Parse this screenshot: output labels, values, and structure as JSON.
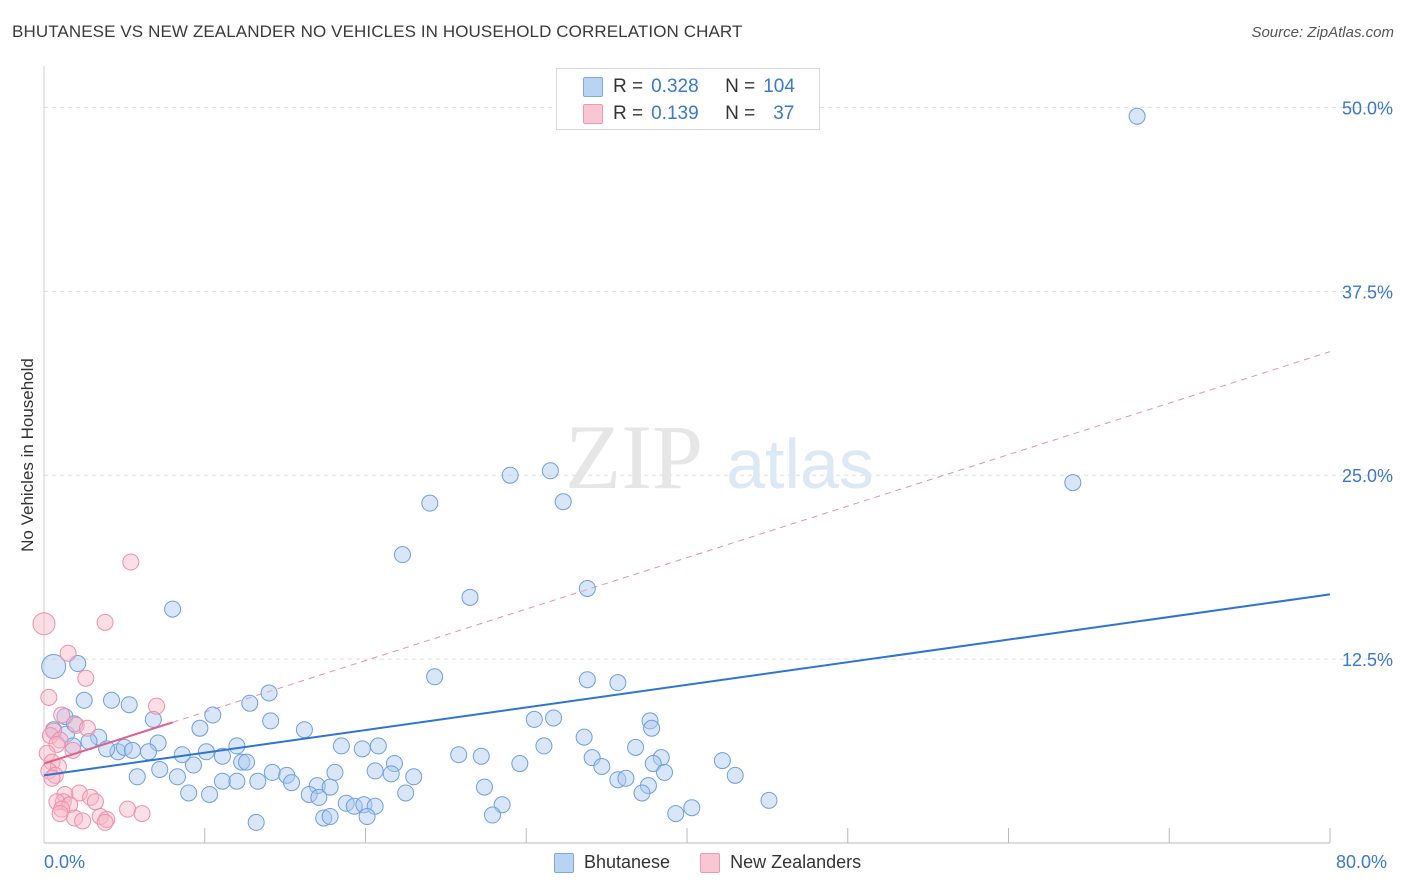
{
  "header": {
    "title": "BHUTANESE VS NEW ZEALANDER NO VEHICLES IN HOUSEHOLD CORRELATION CHART",
    "source": "Source: ZipAtlas.com"
  },
  "watermark": {
    "zip": "ZIP",
    "atlas": "atlas"
  },
  "legend": {
    "items": [
      {
        "r_label": "R =",
        "r_value": "0.328",
        "n_label": "N =",
        "n_value": "104",
        "color": "#a8c8f0"
      },
      {
        "r_label": "R =",
        "r_value": "0.139",
        "n_label": "N =",
        "n_value": "37",
        "color": "#f7b6c8"
      }
    ]
  },
  "bottom_legend": {
    "bhutanese": "Bhutanese",
    "new_zealanders": "New Zealanders"
  },
  "colors": {
    "blue_fill": "rgba(168,200,240,0.45)",
    "blue_stroke": "#6f9fdc",
    "blue_line": "#2f74d0",
    "pink_fill": "rgba(247,182,200,0.45)",
    "pink_stroke": "#ee8fab",
    "pink_line": "#e0608a",
    "grid": "#dddddd",
    "tick_label": "#3a78c9"
  },
  "chart_data": {
    "type": "scatter",
    "title": "BHUTANESE VS NEW ZEALANDER NO VEHICLES IN HOUSEHOLD CORRELATION CHART",
    "xlabel": "",
    "ylabel": "No Vehicles in Household",
    "xlim": [
      0,
      80
    ],
    "ylim": [
      0,
      52
    ],
    "x_tick_labels": [
      "0.0%",
      "80.0%"
    ],
    "y_ticks": [
      {
        "value": 12.5,
        "label": "12.5%"
      },
      {
        "value": 25.0,
        "label": "25.0%"
      },
      {
        "value": 37.5,
        "label": "37.5%"
      },
      {
        "value": 50.0,
        "label": "50.0%"
      }
    ],
    "series": [
      {
        "name": "Bhutanese",
        "R": 0.328,
        "N": 104,
        "trend": {
          "x": [
            0,
            80
          ],
          "y": [
            4.6,
            16.9
          ]
        },
        "points": [
          [
            68,
            49.4
          ],
          [
            64,
            24.5
          ],
          [
            31.5,
            25.3
          ],
          [
            29,
            25
          ],
          [
            32.3,
            23.2
          ],
          [
            24,
            23.1
          ],
          [
            22.3,
            19.6
          ],
          [
            33.8,
            17.3
          ],
          [
            26.5,
            16.7
          ],
          [
            8,
            15.9
          ],
          [
            0.6,
            12
          ],
          [
            2.1,
            12.2
          ],
          [
            24.3,
            11.3
          ],
          [
            33.8,
            11.1
          ],
          [
            35.7,
            10.9
          ],
          [
            14,
            10.2
          ],
          [
            12.8,
            9.5
          ],
          [
            2.5,
            9.7
          ],
          [
            4.2,
            9.7
          ],
          [
            5.3,
            9.4
          ],
          [
            10.5,
            8.7
          ],
          [
            1.3,
            8.6
          ],
          [
            0.6,
            7.7
          ],
          [
            1.4,
            7.4
          ],
          [
            6.8,
            8.4
          ],
          [
            14.1,
            8.3
          ],
          [
            30.5,
            8.4
          ],
          [
            31.7,
            8.5
          ],
          [
            37.7,
            8.3
          ],
          [
            37.8,
            7.8
          ],
          [
            9.7,
            7.8
          ],
          [
            3.4,
            7.2
          ],
          [
            1.8,
            6.6
          ],
          [
            7.1,
            6.8
          ],
          [
            4.6,
            6.2
          ],
          [
            5,
            6.5
          ],
          [
            6.5,
            6.2
          ],
          [
            12,
            6.6
          ],
          [
            18.5,
            6.6
          ],
          [
            19.8,
            6.4
          ],
          [
            20.8,
            6.6
          ],
          [
            10.1,
            6.2
          ],
          [
            11.1,
            5.9
          ],
          [
            27.2,
            5.9
          ],
          [
            34.1,
            5.8
          ],
          [
            38.4,
            5.8
          ],
          [
            9.3,
            5.3
          ],
          [
            12.3,
            5.5
          ],
          [
            12.6,
            5.5
          ],
          [
            21.8,
            5.4
          ],
          [
            29.6,
            5.4
          ],
          [
            34.7,
            5.2
          ],
          [
            37.9,
            5.4
          ],
          [
            38.6,
            4.8
          ],
          [
            7.2,
            5
          ],
          [
            14.2,
            4.8
          ],
          [
            15.1,
            4.6
          ],
          [
            18.1,
            4.8
          ],
          [
            20.6,
            4.9
          ],
          [
            21.6,
            4.7
          ],
          [
            23,
            4.5
          ],
          [
            5.8,
            4.5
          ],
          [
            8.3,
            4.5
          ],
          [
            11.1,
            4.2
          ],
          [
            12,
            4.2
          ],
          [
            13.3,
            4.2
          ],
          [
            15.4,
            4.1
          ],
          [
            17,
            3.9
          ],
          [
            17.8,
            3.8
          ],
          [
            27.4,
            3.8
          ],
          [
            35.7,
            4.3
          ],
          [
            36.2,
            4.4
          ],
          [
            37.6,
            3.9
          ],
          [
            43,
            4.6
          ],
          [
            9,
            3.4
          ],
          [
            10.3,
            3.3
          ],
          [
            16.5,
            3.3
          ],
          [
            17.1,
            3.1
          ],
          [
            22.5,
            3.4
          ],
          [
            18.8,
            2.7
          ],
          [
            19.3,
            2.5
          ],
          [
            19.9,
            2.6
          ],
          [
            20.6,
            2.5
          ],
          [
            28.5,
            2.6
          ],
          [
            37.2,
            3.4
          ],
          [
            40.3,
            2.4
          ],
          [
            45.1,
            2.9
          ],
          [
            17.4,
            1.7
          ],
          [
            17.8,
            1.8
          ],
          [
            20.1,
            1.8
          ],
          [
            27.9,
            1.9
          ],
          [
            39.3,
            2
          ],
          [
            13.2,
            1.4
          ],
          [
            2.8,
            6.9
          ],
          [
            3.9,
            6.4
          ],
          [
            5.5,
            6.3
          ],
          [
            1.9,
            8.1
          ],
          [
            16.2,
            7.7
          ],
          [
            33.6,
            7.2
          ],
          [
            25.8,
            6
          ],
          [
            31.1,
            6.6
          ],
          [
            8.6,
            6
          ],
          [
            42.2,
            5.6
          ],
          [
            36.8,
            6.5
          ]
        ]
      },
      {
        "name": "New Zealanders",
        "R": 0.139,
        "N": 37,
        "trend": {
          "x": [
            0,
            8
          ],
          "y": [
            5.4,
            8.2
          ]
        },
        "points": [
          [
            0,
            14.9
          ],
          [
            5.4,
            19.1
          ],
          [
            3.8,
            15
          ],
          [
            1.5,
            12.9
          ],
          [
            2.6,
            11.2
          ],
          [
            0.3,
            9.9
          ],
          [
            7,
            9.3
          ],
          [
            1.1,
            8.7
          ],
          [
            0.6,
            7.6
          ],
          [
            2,
            8
          ],
          [
            2.7,
            7.8
          ],
          [
            0.4,
            7.3
          ],
          [
            1,
            7
          ],
          [
            0.8,
            6.7
          ],
          [
            1.8,
            6.3
          ],
          [
            0.2,
            6.1
          ],
          [
            0.5,
            5.5
          ],
          [
            0.9,
            5.2
          ],
          [
            0.3,
            4.9
          ],
          [
            0.7,
            4.6
          ],
          [
            0.5,
            4.4
          ],
          [
            2.2,
            3.4
          ],
          [
            1.3,
            3.3
          ],
          [
            2.9,
            3.1
          ],
          [
            3.2,
            2.8
          ],
          [
            1.2,
            2.8
          ],
          [
            0.8,
            2.8
          ],
          [
            1.6,
            2.6
          ],
          [
            1.1,
            2.3
          ],
          [
            5.2,
            2.3
          ],
          [
            1,
            2
          ],
          [
            6.1,
            2
          ],
          [
            3.5,
            1.8
          ],
          [
            3.9,
            1.6
          ],
          [
            3.8,
            1.4
          ],
          [
            1.9,
            1.7
          ],
          [
            2.4,
            1.5
          ]
        ]
      }
    ]
  }
}
